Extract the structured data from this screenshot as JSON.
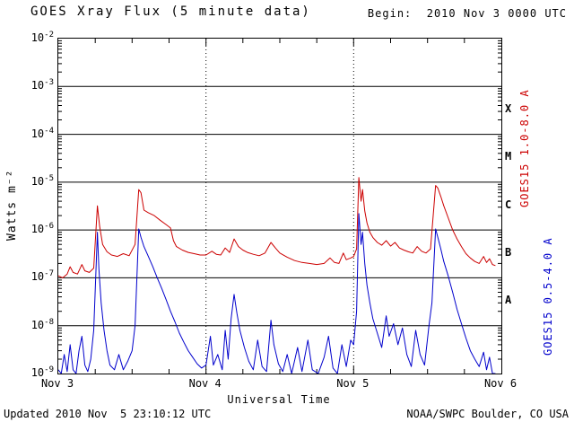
{
  "header": {
    "title": "GOES Xray Flux (5 minute data)",
    "begin_label": "Begin:  2010 Nov 3 0000 UTC"
  },
  "footer": {
    "updated": "Updated 2010 Nov  5 23:10:12 UTC",
    "source": "NOAA/SWPC Boulder, CO USA"
  },
  "axes": {
    "y_title": "Watts m⁻²",
    "x_title": "Universal Time",
    "y_tick_base": "10",
    "y_tick_exponents": [
      "-2",
      "-3",
      "-4",
      "-5",
      "-6",
      "-7",
      "-8",
      "-9"
    ],
    "x_tick_labels": [
      "Nov 3",
      "Nov 4",
      "Nov 5",
      "Nov 6"
    ],
    "flare_classes": [
      {
        "label": "X",
        "exp": -3.5
      },
      {
        "label": "M",
        "exp": -4.5
      },
      {
        "label": "C",
        "exp": -5.5
      },
      {
        "label": "B",
        "exp": -6.5
      },
      {
        "label": "A",
        "exp": -7.5
      }
    ]
  },
  "legend": {
    "long": {
      "label": "GOES15 1.0-8.0 A",
      "color": "#cc0000"
    },
    "short": {
      "label": "GOES15 0.5-4.0 A",
      "color": "#0000cc"
    }
  },
  "chart_data": {
    "type": "line",
    "title": "GOES Xray Flux (5 minute data)",
    "xlabel": "Universal Time",
    "ylabel": "Watts m-2",
    "x_range_days": [
      0,
      3
    ],
    "x_start_label": "2010 Nov 3 0000 UTC",
    "x_tick_labels": [
      "Nov 3",
      "Nov 4",
      "Nov 5",
      "Nov 6"
    ],
    "y_log_range": [
      -9,
      -2
    ],
    "y_scale": "log10",
    "grid": {
      "horizontal": "solid line each decade",
      "vertical": "dotted line at each day boundary"
    },
    "legend_position": "right, vertical",
    "series": [
      {
        "name": "GOES15 0.5-4.0 A",
        "color": "#0000cc",
        "points": [
          [
            0.0,
            1.2e-09
          ],
          [
            0.02,
            1e-09
          ],
          [
            0.04,
            2.5e-09
          ],
          [
            0.06,
            1.1e-09
          ],
          [
            0.08,
            4e-09
          ],
          [
            0.1,
            1.2e-09
          ],
          [
            0.12,
            1e-09
          ],
          [
            0.14,
            3e-09
          ],
          [
            0.16,
            6e-09
          ],
          [
            0.18,
            1.5e-09
          ],
          [
            0.2,
            1.1e-09
          ],
          [
            0.22,
            2e-09
          ],
          [
            0.24,
            8e-09
          ],
          [
            0.265,
            9e-07
          ],
          [
            0.275,
            1.5e-07
          ],
          [
            0.29,
            3e-08
          ],
          [
            0.31,
            8e-09
          ],
          [
            0.33,
            3e-09
          ],
          [
            0.35,
            1.5e-09
          ],
          [
            0.38,
            1.2e-09
          ],
          [
            0.41,
            2.5e-09
          ],
          [
            0.44,
            1.2e-09
          ],
          [
            0.47,
            1.8e-09
          ],
          [
            0.5,
            3e-09
          ],
          [
            0.52,
            1e-08
          ],
          [
            0.545,
            1.05e-06
          ],
          [
            0.56,
            7e-07
          ],
          [
            0.58,
            4.5e-07
          ],
          [
            0.61,
            2.8e-07
          ],
          [
            0.64,
            1.7e-07
          ],
          [
            0.67,
            1e-07
          ],
          [
            0.7,
            6e-08
          ],
          [
            0.73,
            3.5e-08
          ],
          [
            0.76,
            2e-08
          ],
          [
            0.79,
            1.2e-08
          ],
          [
            0.82,
            7e-09
          ],
          [
            0.85,
            4.5e-09
          ],
          [
            0.88,
            3e-09
          ],
          [
            0.91,
            2.2e-09
          ],
          [
            0.94,
            1.6e-09
          ],
          [
            0.97,
            1.3e-09
          ],
          [
            1.0,
            1.5e-09
          ],
          [
            1.03,
            6e-09
          ],
          [
            1.05,
            1.5e-09
          ],
          [
            1.08,
            2.5e-09
          ],
          [
            1.11,
            1.2e-09
          ],
          [
            1.13,
            8e-09
          ],
          [
            1.15,
            2e-09
          ],
          [
            1.17,
            1.4e-08
          ],
          [
            1.19,
            4.5e-08
          ],
          [
            1.21,
            1.8e-08
          ],
          [
            1.23,
            8e-09
          ],
          [
            1.26,
            3.5e-09
          ],
          [
            1.29,
            1.8e-09
          ],
          [
            1.32,
            1.2e-09
          ],
          [
            1.35,
            5e-09
          ],
          [
            1.38,
            1.4e-09
          ],
          [
            1.41,
            1.1e-09
          ],
          [
            1.44,
            1.3e-08
          ],
          [
            1.46,
            4e-09
          ],
          [
            1.49,
            1.6e-09
          ],
          [
            1.52,
            1.1e-09
          ],
          [
            1.55,
            2.5e-09
          ],
          [
            1.58,
            1e-09
          ],
          [
            1.62,
            3.5e-09
          ],
          [
            1.65,
            1.1e-09
          ],
          [
            1.69,
            5e-09
          ],
          [
            1.72,
            1.2e-09
          ],
          [
            1.76,
            1e-09
          ],
          [
            1.8,
            2.2e-09
          ],
          [
            1.83,
            6e-09
          ],
          [
            1.86,
            1.3e-09
          ],
          [
            1.89,
            1e-09
          ],
          [
            1.92,
            4e-09
          ],
          [
            1.95,
            1.4e-09
          ],
          [
            1.98,
            5e-09
          ],
          [
            2.0,
            4e-09
          ],
          [
            2.02,
            2e-08
          ],
          [
            2.035,
            2.2e-06
          ],
          [
            2.05,
            5e-07
          ],
          [
            2.06,
            9e-07
          ],
          [
            2.075,
            2e-07
          ],
          [
            2.09,
            7e-08
          ],
          [
            2.11,
            3e-08
          ],
          [
            2.13,
            1.4e-08
          ],
          [
            2.16,
            7e-09
          ],
          [
            2.19,
            3.5e-09
          ],
          [
            2.22,
            1.6e-08
          ],
          [
            2.24,
            6e-09
          ],
          [
            2.27,
            1.1e-08
          ],
          [
            2.3,
            4e-09
          ],
          [
            2.33,
            9e-09
          ],
          [
            2.36,
            2.5e-09
          ],
          [
            2.39,
            1.4e-09
          ],
          [
            2.42,
            8e-09
          ],
          [
            2.45,
            2.5e-09
          ],
          [
            2.48,
            1.5e-09
          ],
          [
            2.51,
            1e-08
          ],
          [
            2.53,
            3e-08
          ],
          [
            2.555,
            1.05e-06
          ],
          [
            2.57,
            7e-07
          ],
          [
            2.59,
            4e-07
          ],
          [
            2.61,
            2.2e-07
          ],
          [
            2.64,
            1.1e-07
          ],
          [
            2.67,
            5e-08
          ],
          [
            2.7,
            2.2e-08
          ],
          [
            2.73,
            1.1e-08
          ],
          [
            2.76,
            5.5e-09
          ],
          [
            2.79,
            3e-09
          ],
          [
            2.82,
            2e-09
          ],
          [
            2.85,
            1.4e-09
          ],
          [
            2.88,
            2.8e-09
          ],
          [
            2.9,
            1.2e-09
          ],
          [
            2.92,
            2.2e-09
          ],
          [
            2.94,
            1e-09
          ],
          [
            2.96,
            1e-09
          ]
        ]
      },
      {
        "name": "GOES15 1.0-8.0 A",
        "color": "#cc0000",
        "points": [
          [
            0.0,
            1.1e-07
          ],
          [
            0.03,
            1e-07
          ],
          [
            0.06,
            1.2e-07
          ],
          [
            0.08,
            1.7e-07
          ],
          [
            0.1,
            1.3e-07
          ],
          [
            0.13,
            1.2e-07
          ],
          [
            0.16,
            1.9e-07
          ],
          [
            0.18,
            1.4e-07
          ],
          [
            0.21,
            1.3e-07
          ],
          [
            0.24,
            1.6e-07
          ],
          [
            0.265,
            3.2e-06
          ],
          [
            0.28,
            1.2e-06
          ],
          [
            0.3,
            5e-07
          ],
          [
            0.33,
            3.5e-07
          ],
          [
            0.36,
            3e-07
          ],
          [
            0.4,
            2.8e-07
          ],
          [
            0.44,
            3.2e-07
          ],
          [
            0.48,
            2.9e-07
          ],
          [
            0.52,
            5e-07
          ],
          [
            0.545,
            7e-06
          ],
          [
            0.56,
            6e-06
          ],
          [
            0.58,
            2.6e-06
          ],
          [
            0.61,
            2.3e-06
          ],
          [
            0.65,
            2e-06
          ],
          [
            0.69,
            1.6e-06
          ],
          [
            0.73,
            1.3e-06
          ],
          [
            0.76,
            1.1e-06
          ],
          [
            0.78,
            6e-07
          ],
          [
            0.8,
            4.5e-07
          ],
          [
            0.84,
            3.8e-07
          ],
          [
            0.88,
            3.4e-07
          ],
          [
            0.92,
            3.2e-07
          ],
          [
            0.96,
            3e-07
          ],
          [
            1.0,
            3e-07
          ],
          [
            1.04,
            3.6e-07
          ],
          [
            1.07,
            3.1e-07
          ],
          [
            1.1,
            3e-07
          ],
          [
            1.13,
            4.2e-07
          ],
          [
            1.16,
            3.4e-07
          ],
          [
            1.19,
            6.5e-07
          ],
          [
            1.22,
            4.5e-07
          ],
          [
            1.25,
            3.8e-07
          ],
          [
            1.28,
            3.4e-07
          ],
          [
            1.32,
            3.1e-07
          ],
          [
            1.36,
            2.9e-07
          ],
          [
            1.4,
            3.3e-07
          ],
          [
            1.44,
            5.5e-07
          ],
          [
            1.47,
            4.2e-07
          ],
          [
            1.5,
            3.3e-07
          ],
          [
            1.55,
            2.7e-07
          ],
          [
            1.6,
            2.3e-07
          ],
          [
            1.65,
            2.1e-07
          ],
          [
            1.7,
            2e-07
          ],
          [
            1.75,
            1.9e-07
          ],
          [
            1.8,
            2e-07
          ],
          [
            1.84,
            2.6e-07
          ],
          [
            1.87,
            2.1e-07
          ],
          [
            1.9,
            2e-07
          ],
          [
            1.93,
            3.3e-07
          ],
          [
            1.95,
            2.4e-07
          ],
          [
            1.98,
            2.6e-07
          ],
          [
            2.0,
            2.8e-07
          ],
          [
            2.02,
            4e-07
          ],
          [
            2.035,
            1.25e-05
          ],
          [
            2.05,
            4e-06
          ],
          [
            2.06,
            7e-06
          ],
          [
            2.075,
            2.5e-06
          ],
          [
            2.09,
            1.4e-06
          ],
          [
            2.11,
            9e-07
          ],
          [
            2.13,
            7e-07
          ],
          [
            2.16,
            5.5e-07
          ],
          [
            2.19,
            4.8e-07
          ],
          [
            2.22,
            6e-07
          ],
          [
            2.25,
            4.6e-07
          ],
          [
            2.28,
            5.5e-07
          ],
          [
            2.31,
            4.2e-07
          ],
          [
            2.34,
            3.8e-07
          ],
          [
            2.37,
            3.5e-07
          ],
          [
            2.4,
            3.3e-07
          ],
          [
            2.43,
            4.5e-07
          ],
          [
            2.46,
            3.6e-07
          ],
          [
            2.49,
            3.3e-07
          ],
          [
            2.52,
            4e-07
          ],
          [
            2.555,
            8.5e-06
          ],
          [
            2.57,
            7.5e-06
          ],
          [
            2.59,
            5e-06
          ],
          [
            2.61,
            3.2e-06
          ],
          [
            2.64,
            1.8e-06
          ],
          [
            2.67,
            1e-06
          ],
          [
            2.7,
            6.5e-07
          ],
          [
            2.73,
            4.5e-07
          ],
          [
            2.76,
            3.2e-07
          ],
          [
            2.79,
            2.6e-07
          ],
          [
            2.82,
            2.2e-07
          ],
          [
            2.85,
            2e-07
          ],
          [
            2.88,
            2.8e-07
          ],
          [
            2.9,
            2.1e-07
          ],
          [
            2.92,
            2.5e-07
          ],
          [
            2.94,
            1.9e-07
          ],
          [
            2.96,
            1.8e-07
          ]
        ]
      }
    ]
  }
}
